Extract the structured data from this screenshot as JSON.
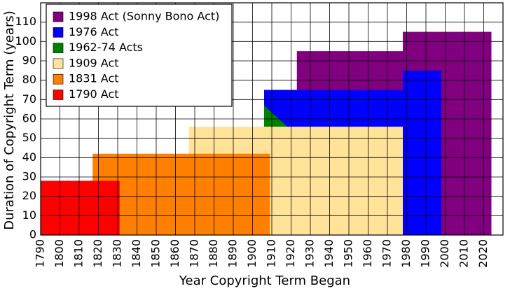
{
  "chart_data": {
    "type": "area",
    "x_label": "Year Copyright Term Began",
    "y_label": "Duration of Copyright Term (years)",
    "xlim": [
      1790,
      2030
    ],
    "xticks": [
      1790,
      1800,
      1810,
      1820,
      1830,
      1840,
      1850,
      1860,
      1870,
      1880,
      1890,
      1900,
      1910,
      1920,
      1930,
      1940,
      1950,
      1960,
      1970,
      1980,
      1990,
      2000,
      2010,
      2020
    ],
    "ylim": [
      0,
      120
    ],
    "yticks": [
      0,
      10,
      20,
      30,
      40,
      50,
      60,
      70,
      80,
      90,
      100,
      110
    ],
    "grid": true,
    "legend": "upper left",
    "series": [
      {
        "name": "1998 Act (Sonny Bono Act)",
        "color": "#800080",
        "x": [
          1923,
          1978,
          1978,
          2024
        ],
        "values": [
          95,
          95,
          105,
          105
        ]
      },
      {
        "name": "1976 Act",
        "color": "#0000ff",
        "x": [
          1906,
          1978,
          1978,
          1998
        ],
        "values": [
          75,
          75,
          85,
          85
        ]
      },
      {
        "name": "1962-74 Acts",
        "color": "#008000",
        "x": [
          1906,
          1918
        ],
        "values": [
          67,
          56
        ]
      },
      {
        "name": "1909 Act",
        "color": "#ffe399",
        "x": [
          1867,
          1978
        ],
        "values": [
          56,
          56
        ]
      },
      {
        "name": "1831 Act",
        "color": "#ff8000",
        "x": [
          1817,
          1909
        ],
        "values": [
          42,
          42
        ]
      },
      {
        "name": "1790 Act",
        "color": "#ff0000",
        "x": [
          1790,
          1831
        ],
        "values": [
          28,
          28
        ]
      }
    ]
  }
}
